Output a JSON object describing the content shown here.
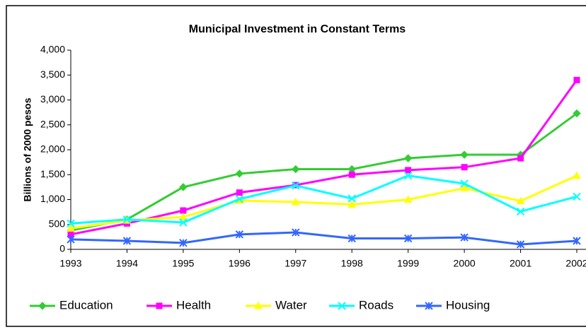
{
  "chart_data": {
    "type": "line",
    "title": "Municipal Investment in Constant Terms",
    "y_label": "Billions of 2000 pesos",
    "categories": [
      "1993",
      "1994",
      "1995",
      "1996",
      "1997",
      "1998",
      "1999",
      "2000",
      "2001",
      "2002"
    ],
    "series": [
      {
        "name": "Education",
        "color": "#33cc33",
        "marker": "diamond",
        "values": [
          380,
          600,
          1250,
          1520,
          1610,
          1610,
          1830,
          1900,
          1900,
          2730
        ]
      },
      {
        "name": "Health",
        "color": "#ff00ff",
        "marker": "square",
        "values": [
          300,
          520,
          780,
          1140,
          1290,
          1500,
          1590,
          1650,
          1830,
          3400
        ]
      },
      {
        "name": "Water",
        "color": "#ffff00",
        "marker": "triangle",
        "values": [
          420,
          580,
          650,
          980,
          950,
          900,
          1000,
          1230,
          970,
          1480
        ]
      },
      {
        "name": "Roads",
        "color": "#00ffff",
        "marker": "x",
        "values": [
          520,
          600,
          540,
          1010,
          1280,
          1020,
          1480,
          1320,
          760,
          1060
        ]
      },
      {
        "name": "Housing",
        "color": "#3366ff",
        "marker": "star",
        "values": [
          200,
          170,
          130,
          300,
          340,
          220,
          220,
          240,
          100,
          170
        ]
      }
    ],
    "ylim": [
      0,
      4000
    ],
    "yticks": [
      0,
      500,
      {
        "value": 1000,
        "label": "1,000"
      },
      {
        "value": 1500,
        "label": "1,500"
      },
      {
        "value": 2000,
        "label": "2,000"
      },
      {
        "value": 2500,
        "label": "2,500"
      },
      {
        "value": 3000,
        "label": "3,000"
      },
      {
        "value": 3500,
        "label": "3,500"
      },
      {
        "value": 4000,
        "label": "4,000"
      }
    ],
    "grid": false,
    "legend": "bottom"
  }
}
